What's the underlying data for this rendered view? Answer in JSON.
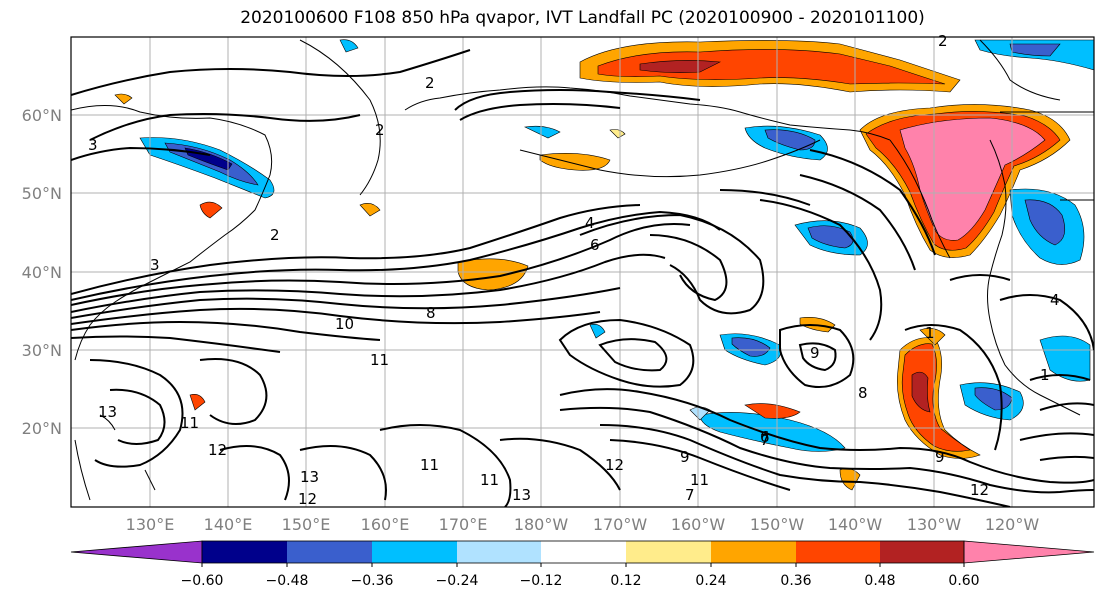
{
  "title": "2020100600 F108 850 hPa qvapor, IVT Landfall PC (2020100900 - 2020101100)",
  "lat_labels": [
    "60°N",
    "50°N",
    "40°N",
    "30°N",
    "20°N"
  ],
  "lon_labels": [
    "130°E",
    "140°E",
    "150°E",
    "160°E",
    "170°E",
    "180°W",
    "170°W",
    "160°W",
    "150°W",
    "140°W",
    "130°W",
    "120°W"
  ],
  "colorbar": {
    "ticks": [
      "−0.60",
      "−0.48",
      "−0.36",
      "−0.24",
      "−0.12",
      "0.12",
      "0.24",
      "0.36",
      "0.48",
      "0.60"
    ],
    "colors": [
      "#9932cc",
      "#00008b",
      "#3a5fcd",
      "#00bfff",
      "#b0e2ff",
      "#ffffff",
      "#ffec8b",
      "#ffa500",
      "#ff4500",
      "#b22222",
      "#ff82ab"
    ],
    "extend": "both"
  },
  "contour_labels": [
    "2",
    "2",
    "2",
    "3",
    "4",
    "6",
    "8",
    "9",
    "10",
    "11",
    "13",
    "12",
    "12",
    "11",
    "11",
    "12",
    "13",
    "13",
    "9",
    "8",
    "7",
    "12",
    "9",
    "6",
    "7",
    "3",
    "4",
    "2",
    "11",
    "11",
    "1",
    "1"
  ],
  "fill_colors": {
    "pink": "#ff82ab",
    "red": "#ff4500",
    "darkred": "#b22222",
    "orange": "#ffa500",
    "yellow": "#ffec8b",
    "lightblue": "#b0e2ff",
    "cyan": "#00bfff",
    "blue": "#3a5fcd",
    "navy": "#00008b"
  }
}
